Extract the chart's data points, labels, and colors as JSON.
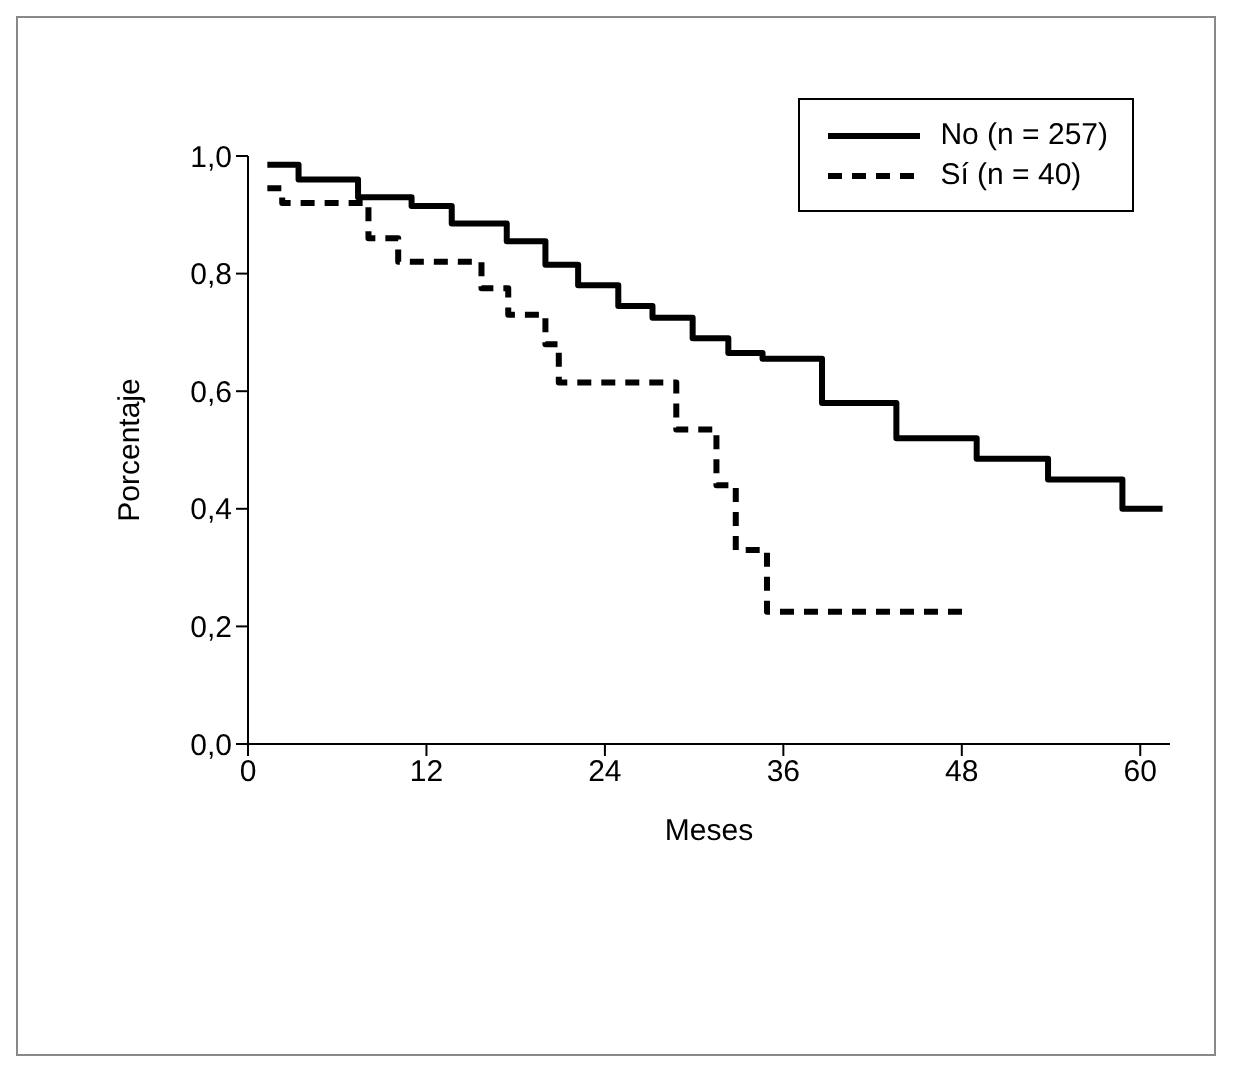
{
  "chart_data": {
    "type": "step",
    "xlabel": "Meses",
    "ylabel": "Porcentaje",
    "xlim": [
      0,
      62
    ],
    "xticks": [
      0,
      12,
      24,
      36,
      48,
      60
    ],
    "ylim": [
      0,
      1
    ],
    "yticks": [
      {
        "value": 0,
        "label": "0,0"
      },
      {
        "value": 0.2,
        "label": "0,2"
      },
      {
        "value": 0.4,
        "label": "0,4"
      },
      {
        "value": 0.6,
        "label": "0,6"
      },
      {
        "value": 0.8,
        "label": "0,8"
      },
      {
        "value": 1,
        "label": "1,0"
      }
    ],
    "grid": false,
    "legend": "top right",
    "marker": "none",
    "series": [
      {
        "name": "No (n = 257)",
        "color": "#000000",
        "line_style": "solid",
        "x": [
          1.3,
          3.4,
          7.4,
          11,
          13.7,
          17.4,
          20,
          22.2,
          24.9,
          27.2,
          29.9,
          32.3,
          34.6,
          38.6,
          43.6,
          46.3,
          49,
          52.5,
          53.8,
          57.5,
          58.8,
          61.5
        ],
        "values": [
          0.985,
          0.96,
          0.93,
          0.915,
          0.885,
          0.855,
          0.815,
          0.78,
          0.745,
          0.725,
          0.69,
          0.665,
          0.655,
          0.58,
          0.52,
          0.52,
          0.485,
          0.485,
          0.45,
          0.45,
          0.4,
          0.4
        ]
      },
      {
        "name": "Sí (n = 40)",
        "color": "#000000",
        "line_style": "dashed",
        "x": [
          1.3,
          2.3,
          8.1,
          10.1,
          15.7,
          17.5,
          20,
          20.9,
          28.8,
          31.5,
          32.8,
          34.9,
          48.4
        ],
        "values": [
          0.945,
          0.92,
          0.86,
          0.82,
          0.775,
          0.73,
          0.68,
          0.615,
          0.535,
          0.44,
          0.33,
          0.225,
          0.225
        ]
      }
    ]
  }
}
